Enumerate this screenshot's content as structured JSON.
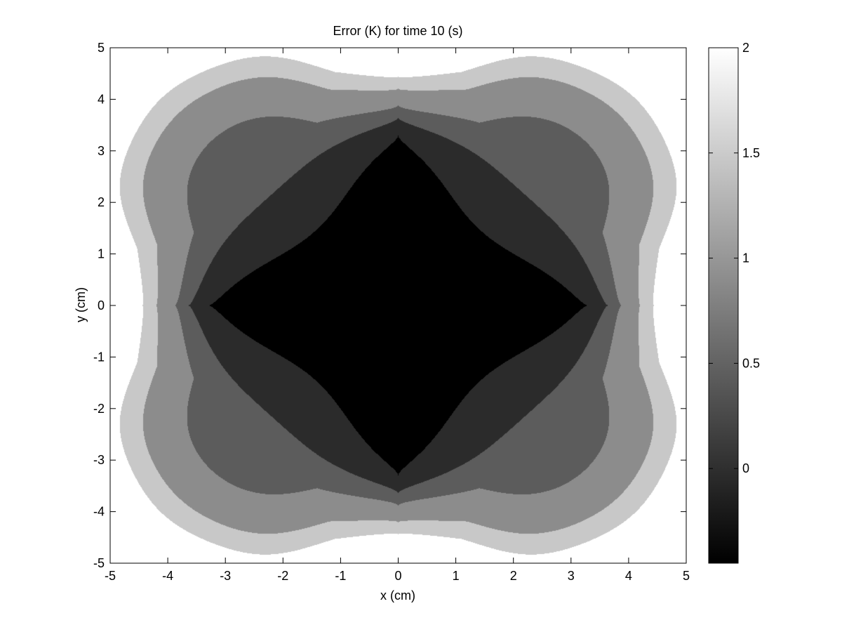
{
  "chart_data": {
    "type": "heatmap",
    "subtype": "filled-contour",
    "title": "Error (K) for time 10 (s)",
    "xlabel": "x (cm)",
    "ylabel": "y (cm)",
    "xlim": [
      -5,
      5
    ],
    "ylim": [
      -5,
      5
    ],
    "x_ticks": [
      "-5",
      "-4",
      "-3",
      "-2",
      "-1",
      "0",
      "1",
      "2",
      "3",
      "4",
      "5"
    ],
    "y_ticks": [
      "-5",
      "-4",
      "-3",
      "-2",
      "-1",
      "0",
      "1",
      "2",
      "3",
      "4",
      "5"
    ],
    "colormap": "gray",
    "colorbar": {
      "range": [
        -0.45,
        2.0
      ],
      "ticks": [
        "0",
        "0.5",
        "1",
        "1.5",
        "2"
      ],
      "tick_values": [
        0,
        0.5,
        1,
        1.5,
        2
      ]
    },
    "contour_levels": [
      0,
      0.25,
      0.5,
      0.75,
      1.25,
      1.75
    ],
    "level_colors": [
      "#000000",
      "#2b2b2b",
      "#5c5c5c",
      "#8c8c8c",
      "#c8c8c8",
      "#ffffff"
    ],
    "grid": false
  }
}
